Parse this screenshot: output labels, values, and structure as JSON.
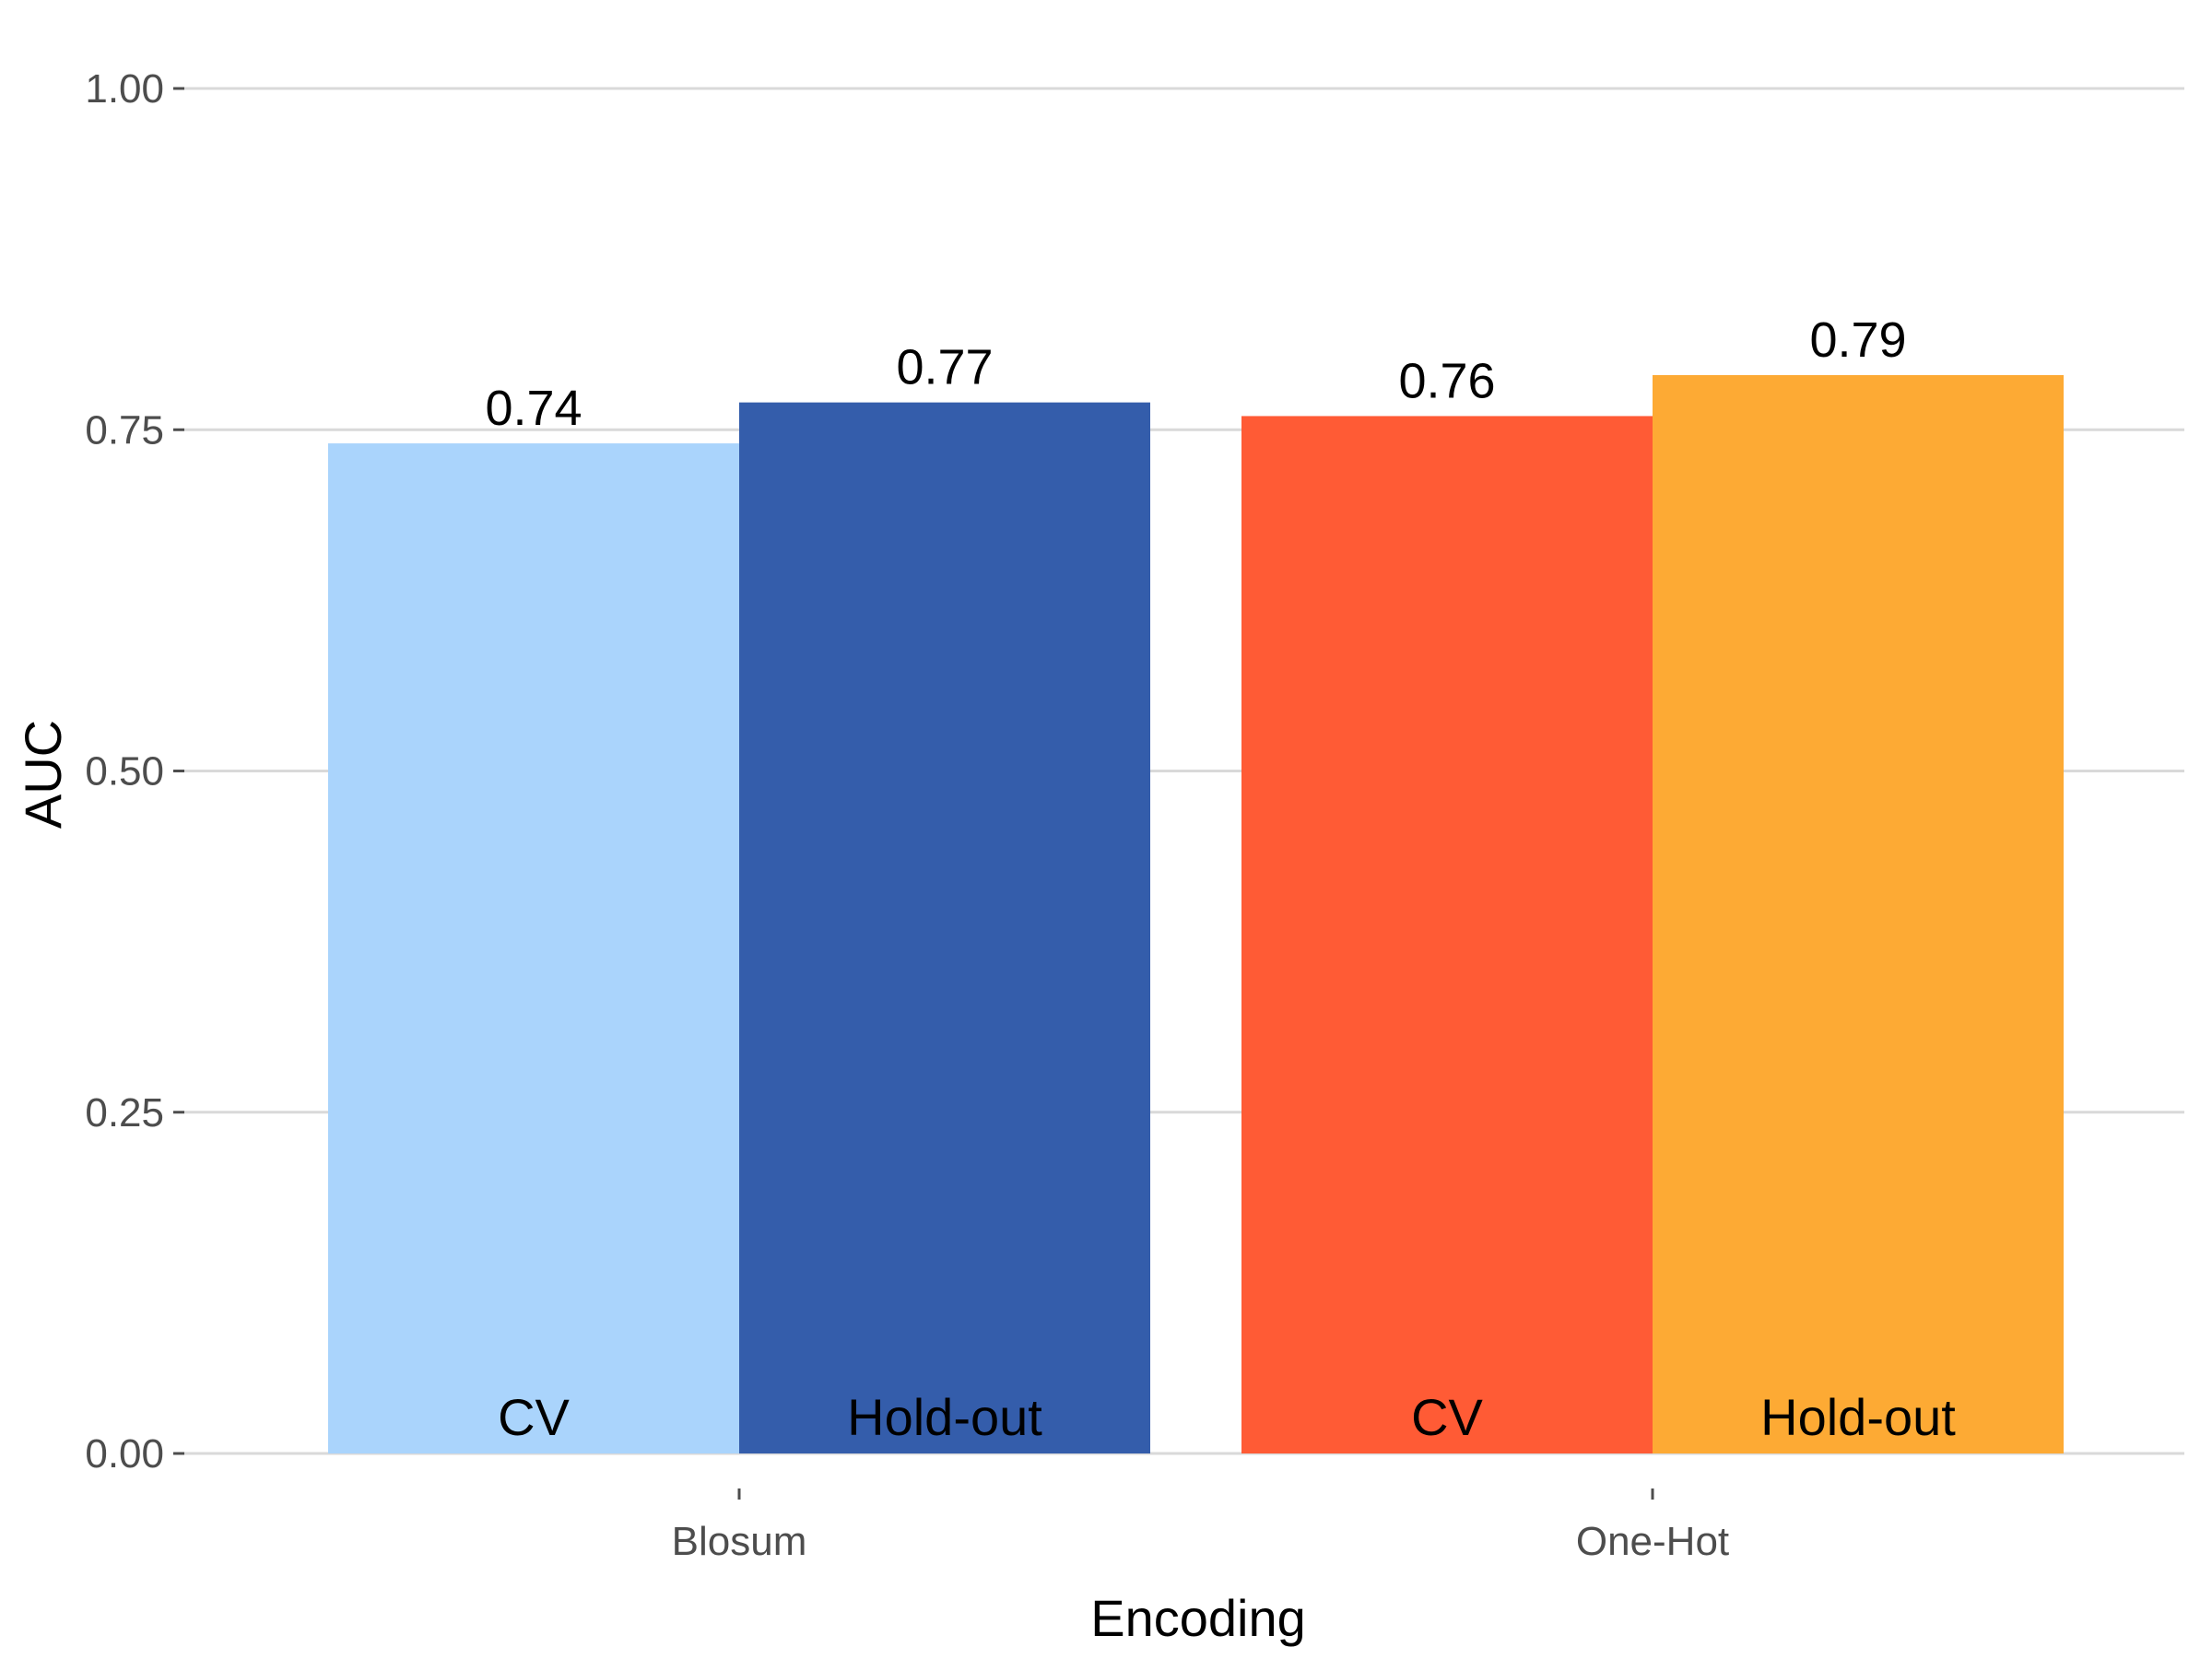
{
  "chart_data": {
    "type": "bar",
    "categories": [
      "Blosum",
      "One-Hot"
    ],
    "series": [
      {
        "name": "CV",
        "values": [
          0.74,
          0.76
        ],
        "colors": [
          "#aad4fc",
          "#ff5b35"
        ]
      },
      {
        "name": "Hold-out",
        "values": [
          0.77,
          0.79
        ],
        "colors": [
          "#345dab",
          "#fdaa34"
        ]
      }
    ],
    "xlabel": "Encoding",
    "ylabel": "AUC",
    "ylim": [
      0,
      1
    ],
    "yticks": [
      "0.00",
      "0.25",
      "0.50",
      "0.75",
      "1.00"
    ],
    "ytick_values": [
      0,
      0.25,
      0.5,
      0.75,
      1
    ],
    "grid": true,
    "legend": "none"
  }
}
